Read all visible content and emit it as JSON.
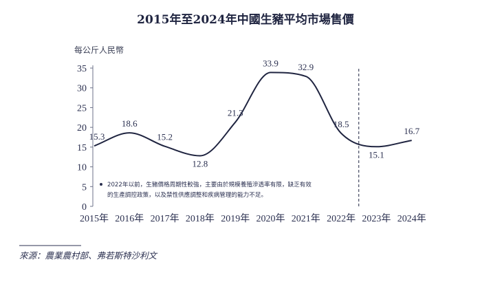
{
  "chart_data": {
    "type": "line",
    "title": "2015年至2024年中國生豬平均市場售價",
    "ylabel": "每公斤人民幣",
    "categories": [
      "2015年",
      "2016年",
      "2017年",
      "2018年",
      "2019年",
      "2020年",
      "2021年",
      "2022年",
      "2023年",
      "2024年"
    ],
    "values": [
      15.3,
      18.6,
      15.2,
      12.8,
      21.3,
      33.9,
      32.9,
      18.5,
      15.1,
      16.7
    ],
    "data_labels": [
      "15.3",
      "18.6",
      "15.2",
      "12.8",
      "21.3",
      "33.9",
      "32.9",
      "18.5",
      "15.1",
      "16.7"
    ],
    "ylim": [
      0,
      35
    ],
    "yticks": [
      "0",
      "5",
      "10",
      "15",
      "20",
      "25",
      "30",
      "35"
    ],
    "grid": false,
    "forecast_divider_after": "2022年",
    "line_color": "#1f2440",
    "note_lines": [
      "2022年以前，生豬價格周期性較強，主要由於規模養殖滲透率有限，缺乏有效",
      "的生產調控政策，以及禁性供應調整和疾病管理的能力不足。"
    ]
  },
  "source": "來源：農業農村部、弗若斯特沙利文"
}
